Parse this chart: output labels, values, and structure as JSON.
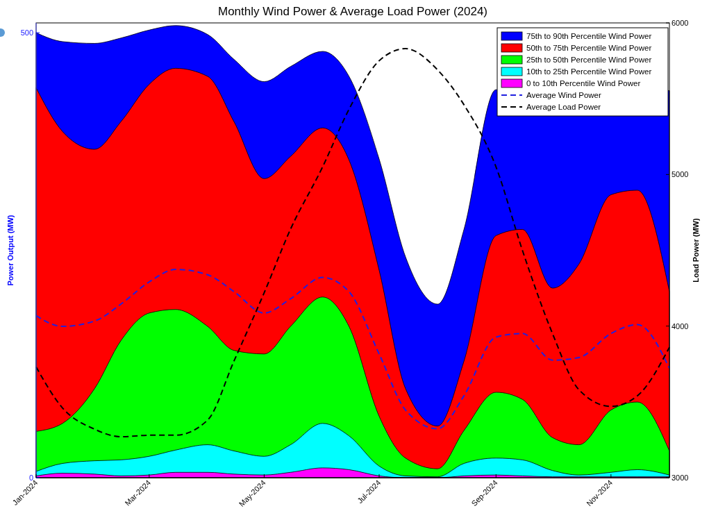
{
  "chart_data": {
    "type": "area",
    "title": "Monthly Wind Power & Average Load Power (2024)",
    "ylabel": "Power Output (MW)",
    "y2label": "Load Power (MW)",
    "x": [
      "2024-01-01",
      "2024-01-15",
      "2024-02-01",
      "2024-02-15",
      "2024-03-01",
      "2024-03-15",
      "2024-04-01",
      "2024-04-15",
      "2024-05-01",
      "2024-05-15",
      "2024-06-01",
      "2024-06-15",
      "2024-07-01",
      "2024-07-15",
      "2024-08-01",
      "2024-08-15",
      "2024-09-01",
      "2024-09-15",
      "2024-10-01",
      "2024-10-15",
      "2024-11-01",
      "2024-11-15",
      "2024-12-02"
    ],
    "xlim": [
      "2024-01-01",
      "2024-12-02"
    ],
    "xticks": [
      {
        "value": "2024-01-01",
        "label": "Jan-2024"
      },
      {
        "value": "2024-03-01",
        "label": "Mar-2024"
      },
      {
        "value": "2024-05-01",
        "label": "May-2024"
      },
      {
        "value": "2024-07-01",
        "label": "Jul-2024"
      },
      {
        "value": "2024-09-01",
        "label": "Sep-2024"
      },
      {
        "value": "2024-11-01",
        "label": "Nov-2024"
      }
    ],
    "ylim": [
      0,
      511
    ],
    "yticks": [
      0,
      500
    ],
    "y2lim": [
      3000,
      6000
    ],
    "y2ticks": [
      3000,
      4000,
      5000,
      6000
    ],
    "stacked": true,
    "grid": false,
    "legend": "top right",
    "series": [
      {
        "name": "0 to 10th Percentile Wind Power",
        "color": "#ff00ff",
        "values": [
          2,
          5,
          4,
          2,
          3,
          6,
          6,
          4,
          3,
          6,
          11,
          9,
          2,
          0,
          0,
          2,
          3,
          2,
          1,
          1,
          1,
          1,
          1
        ]
      },
      {
        "name": "10th to 25th Percentile Wind Power",
        "color": "#00ffff",
        "values": [
          5,
          11,
          15,
          18,
          21,
          25,
          31,
          26,
          21,
          31,
          50,
          38,
          11,
          2,
          1,
          14,
          19,
          18,
          7,
          2,
          5,
          8,
          2
        ]
      },
      {
        "name": "25th to 50th Percentile Wind Power",
        "color": "#00ff00",
        "values": [
          45,
          45,
          81,
          134,
          161,
          158,
          133,
          113,
          115,
          133,
          142,
          123,
          56,
          20,
          9,
          37,
          74,
          68,
          37,
          34,
          70,
          76,
          27
        ]
      },
      {
        "name": "50th to 75th Percentile Wind Power",
        "color": "#ff0000",
        "values": [
          386,
          328,
          269,
          246,
          257,
          271,
          281,
          257,
          197,
          191,
          190,
          187,
          164,
          78,
          48,
          78,
          176,
          191,
          168,
          203,
          242,
          238,
          179
        ]
      },
      {
        "name": "75th to 90th Percentile Wind Power",
        "color": "#0000ff",
        "values": [
          62,
          101,
          119,
          94,
          61,
          48,
          47,
          70,
          109,
          101,
          86,
          94,
          125,
          148,
          137,
          148,
          164,
          null,
          null,
          null,
          null,
          null,
          226
        ]
      },
      {
        "name": "Average Wind Power",
        "type": "line",
        "line_style": "dashed",
        "color": "#2020e0",
        "values": [
          182,
          170,
          176,
          195,
          220,
          234,
          228,
          209,
          185,
          201,
          225,
          209,
          139,
          76,
          55,
          92,
          158,
          162,
          132,
          135,
          162,
          172,
          123
        ]
      },
      {
        "name": "Average Load Power",
        "type": "line",
        "line_style": "dashed",
        "axis": "y2",
        "color": "#000000",
        "values": [
          3730,
          3460,
          3320,
          3270,
          3280,
          3280,
          3380,
          3770,
          4220,
          4640,
          5050,
          5430,
          5750,
          5830,
          5690,
          5460,
          5050,
          4500,
          3950,
          3580,
          3470,
          3540,
          3860
        ]
      }
    ]
  }
}
